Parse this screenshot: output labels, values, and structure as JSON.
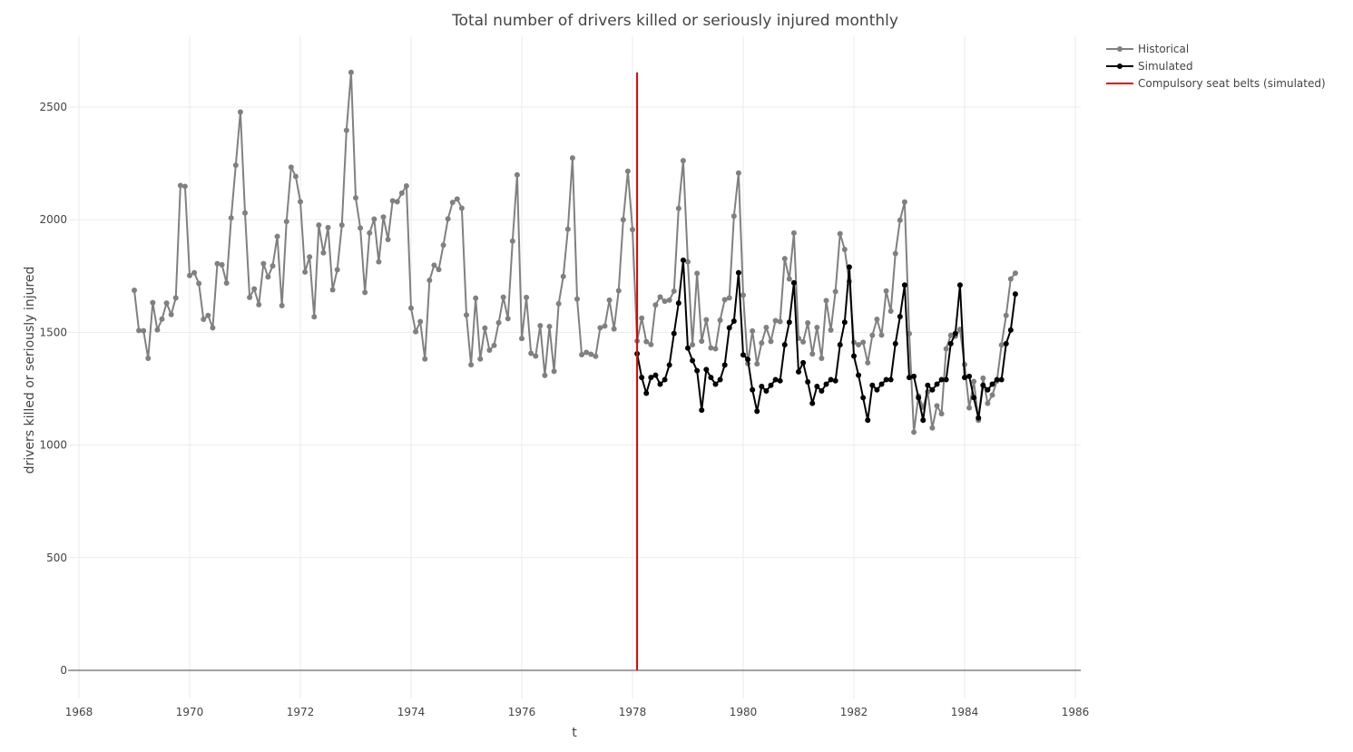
{
  "chart_data": {
    "type": "line",
    "title": "Total number of drivers killed or seriously injured monthly",
    "xlabel": "t",
    "ylabel": "drivers killed or seriously injured",
    "xlim": [
      1968,
      1986
    ],
    "ylim": [
      -200,
      2800
    ],
    "x_ticks": [
      1968,
      1970,
      1972,
      1974,
      1976,
      1978,
      1980,
      1982,
      1984,
      1986
    ],
    "y_ticks": [
      0,
      500,
      1000,
      1500,
      2000,
      2500
    ],
    "grid": true,
    "legend_position": "top-right",
    "series": [
      {
        "name": "Historical",
        "color": "#808080",
        "x_start": 1969.0,
        "x_step": 0.083333,
        "values": [
          1687,
          1508,
          1507,
          1385,
          1632,
          1511,
          1559,
          1630,
          1579,
          1653,
          2152,
          2148,
          1752,
          1765,
          1717,
          1558,
          1575,
          1520,
          1805,
          1800,
          1719,
          2008,
          2242,
          2478,
          2030,
          1655,
          1693,
          1623,
          1805,
          1746,
          1795,
          1926,
          1619,
          1992,
          2233,
          2192,
          2080,
          1768,
          1835,
          1569,
          1976,
          1853,
          1965,
          1689,
          1778,
          1976,
          2397,
          2654,
          2097,
          1963,
          1677,
          1941,
          2003,
          1813,
          2012,
          1912,
          2084,
          2080,
          2118,
          2150,
          1608,
          1503,
          1548,
          1382,
          1731,
          1798,
          1779,
          1887,
          2004,
          2077,
          2092,
          2051,
          1577,
          1356,
          1652,
          1382,
          1519,
          1421,
          1442,
          1543,
          1656,
          1561,
          1905,
          2199,
          1473,
          1655,
          1407,
          1395,
          1530,
          1309,
          1526,
          1327,
          1627,
          1748,
          1958,
          2274,
          1648,
          1401,
          1411,
          1403,
          1394,
          1520,
          1528,
          1643,
          1515,
          1685,
          2000,
          2215,
          1956,
          1462,
          1563,
          1459,
          1446,
          1622,
          1657,
          1638,
          1643,
          1683,
          2050,
          2262,
          1813,
          1445,
          1762,
          1461,
          1556,
          1431,
          1427,
          1554,
          1645,
          1653,
          2016,
          2207,
          1665,
          1361,
          1506,
          1360,
          1453,
          1522,
          1460,
          1552,
          1548,
          1827,
          1737,
          1941,
          1474,
          1458,
          1542,
          1404,
          1522,
          1385,
          1641,
          1510,
          1681,
          1938,
          1868,
          1726,
          1456,
          1445,
          1456,
          1365,
          1487,
          1558,
          1488,
          1684,
          1594,
          1850,
          1998,
          2079,
          1494,
          1057,
          1218,
          1168,
          1236,
          1076,
          1174,
          1139,
          1427,
          1487,
          1483,
          1513,
          1357,
          1165,
          1282,
          1110,
          1297,
          1185,
          1222,
          1284,
          1444,
          1575,
          1737,
          1763
        ]
      },
      {
        "name": "Simulated",
        "color": "#000000",
        "x_start": 1978.083333,
        "x_step": 0.083333,
        "values": [
          1405,
          1300,
          1230,
          1300,
          1310,
          1270,
          1290,
          1355,
          1495,
          1630,
          1820,
          1430,
          1375,
          1330,
          1155,
          1335,
          1300,
          1270,
          1290,
          1355,
          1520,
          1550,
          1765,
          1400,
          1380,
          1245,
          1150,
          1260,
          1240,
          1265,
          1290,
          1285,
          1445,
          1545,
          1720,
          1325,
          1365,
          1280,
          1185,
          1260,
          1240,
          1270,
          1290,
          1285,
          1445,
          1545,
          1790,
          1395,
          1310,
          1210,
          1110,
          1265,
          1245,
          1270,
          1290,
          1290,
          1450,
          1570,
          1710,
          1300,
          1305,
          1210,
          1110,
          1265,
          1245,
          1270,
          1290,
          1290,
          1450,
          1495,
          1710,
          1300,
          1305,
          1210,
          1120,
          1265,
          1245,
          1270,
          1290,
          1290,
          1450,
          1510,
          1670
        ]
      }
    ],
    "annotations": [
      {
        "name": "Compulsory seat belts (simulated)",
        "type": "vline",
        "x": 1978.083333,
        "y_from": 0,
        "y_to": 2654,
        "color": "#e00000"
      }
    ]
  }
}
